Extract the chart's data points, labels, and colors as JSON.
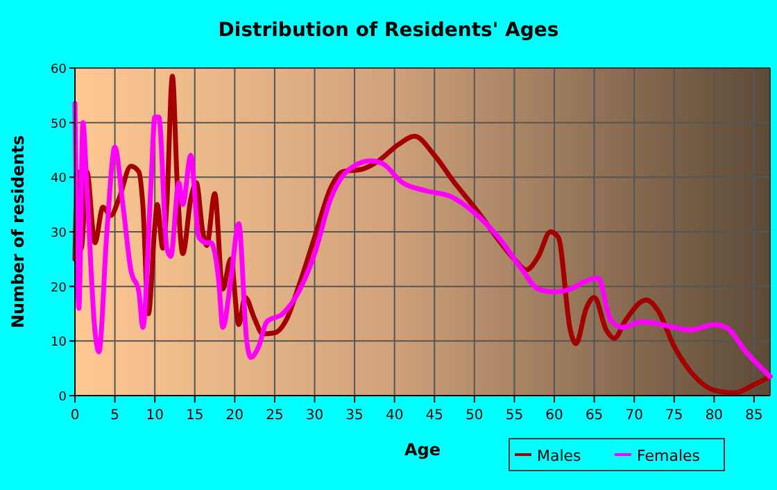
{
  "chart_data": {
    "type": "line",
    "title": "Distribution of Residents' Ages",
    "xlabel": "Age",
    "ylabel": "Number of residents",
    "xlim": [
      0,
      87
    ],
    "xticks": [
      0,
      5,
      10,
      15,
      20,
      25,
      30,
      35,
      40,
      45,
      50,
      55,
      60,
      65,
      70,
      75,
      80,
      85
    ],
    "ylim": [
      0,
      60
    ],
    "yticks": [
      0,
      10,
      20,
      30,
      40,
      50,
      60
    ],
    "grid": true,
    "legend": "bottom right",
    "line_style": "solid",
    "series": [
      {
        "name": "Males",
        "color": "#a50000",
        "x": [
          0,
          0.3,
          0.8,
          1.5,
          2.5,
          3.5,
          4.5,
          5.5,
          7,
          8,
          8.5,
          9.2,
          10,
          10.3,
          11,
          11.5,
          12.2,
          12.8,
          13.5,
          14.5,
          15.2,
          16,
          16.5,
          17.5,
          18.5,
          19.5,
          20.5,
          21.3,
          22.5,
          23.5,
          25,
          26.5,
          28,
          30,
          32,
          33.5,
          36,
          38,
          40.5,
          42.5,
          45,
          47.5,
          50,
          55,
          56.5,
          58,
          59.5,
          60.5,
          62,
          62.7,
          64,
          65,
          66.5,
          67.5,
          69,
          71.5,
          73,
          75,
          77,
          80,
          82.5,
          85,
          87
        ],
        "values": [
          25,
          41,
          27,
          41,
          28,
          34.5,
          33,
          36,
          42,
          41,
          35,
          15,
          31,
          35,
          27,
          35,
          58.5,
          39,
          26,
          36,
          39,
          30,
          27.5,
          37,
          19.5,
          25,
          13,
          18,
          14,
          11.3,
          11.5,
          14,
          20,
          29,
          38,
          41,
          41.5,
          43,
          46,
          47.5,
          44,
          39,
          34.5,
          25,
          23,
          25.5,
          30,
          29,
          12,
          9.5,
          16,
          18,
          12,
          10.5,
          14,
          17.5,
          15.5,
          9,
          4.5,
          1,
          0.5,
          2,
          3.5
        ]
      },
      {
        "name": "Females",
        "color": "#ff00ff",
        "x": [
          0,
          0.5,
          1,
          1.5,
          2.5,
          3,
          4,
          5,
          6,
          7,
          8,
          8.5,
          9.5,
          10,
          10.5,
          11.5,
          12,
          13,
          13.5,
          14.5,
          15.5,
          16.5,
          17,
          18,
          18.5,
          19.5,
          20.5,
          21.5,
          22,
          23,
          24,
          26,
          28,
          30,
          32,
          34,
          37,
          38.5,
          41,
          44,
          47,
          50,
          53,
          56,
          58,
          60,
          62,
          64,
          65.5,
          67,
          68.5,
          71,
          75,
          77,
          80,
          81.5,
          84,
          87
        ],
        "values": [
          53.5,
          16,
          50,
          38,
          12,
          8,
          30,
          45.5,
          35,
          23,
          19,
          12.5,
          38,
          51,
          51,
          27,
          25.5,
          39,
          35,
          44,
          29,
          28,
          28,
          21,
          12.5,
          21,
          31.5,
          10,
          7,
          9,
          13.5,
          15,
          19,
          26,
          36,
          41,
          43,
          42.5,
          39,
          37.5,
          36.5,
          33.5,
          29,
          23,
          19.5,
          19,
          19.5,
          21,
          21.5,
          14,
          12.5,
          13.5,
          12.5,
          12,
          13,
          12.5,
          8,
          3.5
        ]
      }
    ]
  }
}
